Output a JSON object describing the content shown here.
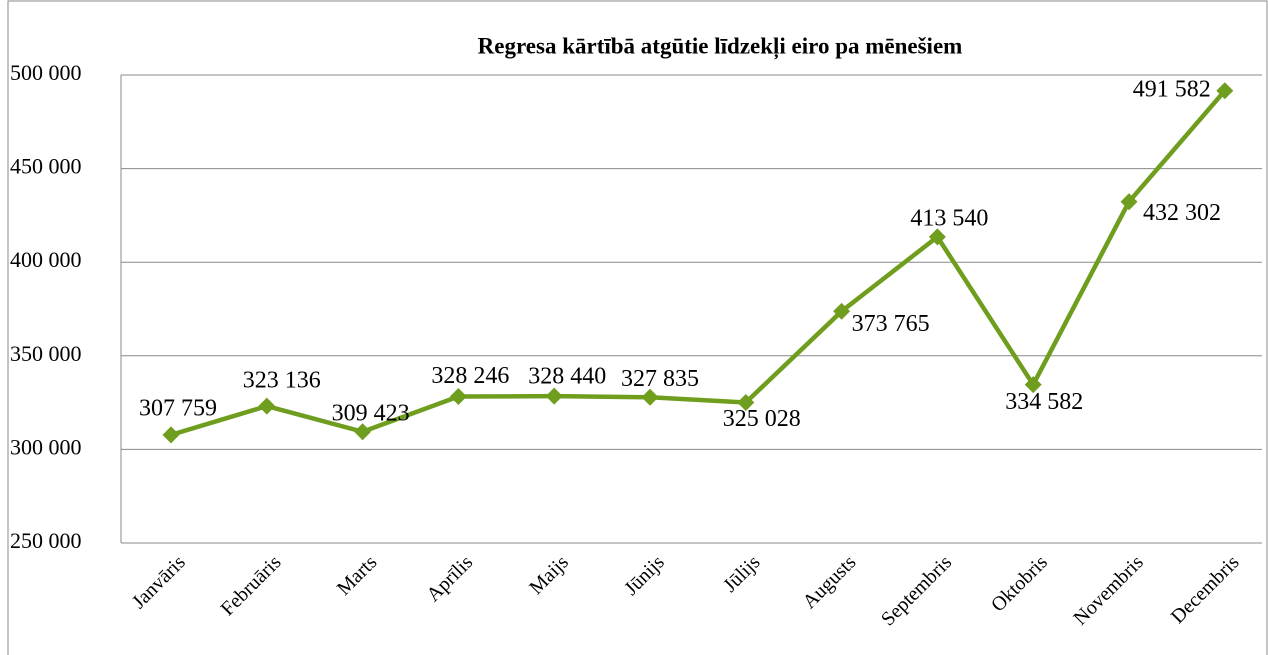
{
  "chart_data": {
    "type": "line",
    "title": "Regresa kārtībā atgūtie līdzekļi eiro pa mēnešiem",
    "categories": [
      "Janvāris",
      "Februāris",
      "Marts",
      "Aprīlis",
      "Maijs",
      "Jūnijs",
      "Jūlijs",
      "Augusts",
      "Septembris",
      "Oktobris",
      "Novembris",
      "Decembris"
    ],
    "series": [
      {
        "name": null,
        "color": "#6f9d1e",
        "values": [
          307759,
          323136,
          309423,
          328246,
          328440,
          327835,
          325028,
          373765,
          413540,
          334582,
          432302,
          491582
        ],
        "value_labels": [
          "307 759",
          "323 136",
          "309 423",
          "328 246",
          "328 440",
          "327 835",
          "325 028",
          "373 765",
          "413 540",
          "334 582",
          "432 302",
          "491 582"
        ]
      }
    ],
    "ylim": [
      250000,
      500000
    ],
    "yticks": [
      {
        "value": 250000,
        "label": "250 000"
      },
      {
        "value": 300000,
        "label": "300 000"
      },
      {
        "value": 350000,
        "label": "350 000"
      },
      {
        "value": 400000,
        "label": "400 000"
      },
      {
        "value": 450000,
        "label": "450 000"
      },
      {
        "value": 500000,
        "label": "500 000"
      }
    ],
    "grid": true
  }
}
